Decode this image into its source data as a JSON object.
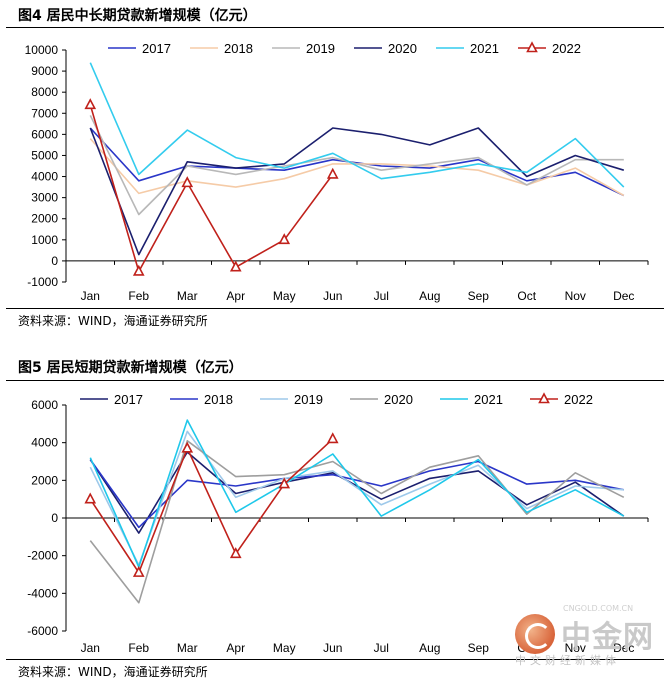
{
  "panels": [
    {
      "title": "图4  居民中长期贷款新增规模（亿元）",
      "source": "资料来源：WIND，海通证券研究所"
    },
    {
      "title": "图5  居民短期贷款新增规模（亿元）",
      "source": "资料来源：WIND，海通证券研究所"
    }
  ],
  "watermark": {
    "name": "中金网",
    "domain": "CNGOLD.COM.CN",
    "tagline": "中文财经新媒体"
  },
  "chart_data": [
    {
      "type": "line",
      "categories": [
        "Jan",
        "Feb",
        "Mar",
        "Apr",
        "May",
        "Jun",
        "Jul",
        "Aug",
        "Sep",
        "Oct",
        "Nov",
        "Dec"
      ],
      "ylim": [
        -1000,
        10000
      ],
      "yticks": [
        -1000,
        0,
        1000,
        2000,
        3000,
        4000,
        5000,
        6000,
        7000,
        8000,
        9000,
        10000
      ],
      "legend_position": "top",
      "grid": false,
      "series": [
        {
          "name": "2017",
          "color": "#2a36c8",
          "marker": null,
          "values": [
            6300,
            3800,
            4500,
            4400,
            4300,
            4800,
            4500,
            4400,
            4800,
            3800,
            4200,
            3100
          ]
        },
        {
          "name": "2018",
          "color": "#f5cba7",
          "marker": null,
          "values": [
            5800,
            3200,
            3800,
            3500,
            3900,
            4600,
            4600,
            4500,
            4300,
            3600,
            4400,
            3100
          ]
        },
        {
          "name": "2019",
          "color": "#b8b8b8",
          "marker": null,
          "values": [
            6900,
            2200,
            4500,
            4100,
            4500,
            4900,
            4300,
            4600,
            4900,
            3600,
            4800,
            4800
          ]
        },
        {
          "name": "2020",
          "color": "#1b1f6e",
          "marker": null,
          "values": [
            6300,
            300,
            4700,
            4400,
            4600,
            6300,
            6000,
            5500,
            6300,
            4000,
            5000,
            4300
          ]
        },
        {
          "name": "2021",
          "color": "#33ccee",
          "marker": null,
          "values": [
            9400,
            4100,
            6200,
            4900,
            4400,
            5100,
            3900,
            4200,
            4600,
            4200,
            5800,
            3500
          ]
        },
        {
          "name": "2022",
          "color": "#c0211b",
          "marker": "triangle",
          "values": [
            7400,
            -500,
            3700,
            -300,
            1000,
            4100,
            null,
            null,
            null,
            null,
            null,
            null
          ]
        }
      ]
    },
    {
      "type": "line",
      "categories": [
        "Jan",
        "Feb",
        "Mar",
        "Apr",
        "May",
        "Jun",
        "Jul",
        "Aug",
        "Sep",
        "Oct",
        "Nov",
        "Dec"
      ],
      "ylim": [
        -6000,
        6000
      ],
      "yticks": [
        -6000,
        -4000,
        -2000,
        0,
        2000,
        4000,
        6000
      ],
      "legend_position": "top",
      "grid": false,
      "series": [
        {
          "name": "2017",
          "color": "#1b1f6e",
          "marker": null,
          "values": [
            3100,
            -800,
            3500,
            1300,
            1900,
            2400,
            1000,
            2100,
            2500,
            700,
            1900,
            100
          ]
        },
        {
          "name": "2018",
          "color": "#2a36c8",
          "marker": null,
          "values": [
            3100,
            -500,
            2000,
            1700,
            2100,
            2300,
            1700,
            2500,
            3000,
            1800,
            2000,
            1500
          ]
        },
        {
          "name": "2019",
          "color": "#9ec9ea",
          "marker": null,
          "values": [
            2700,
            -2500,
            4600,
            1100,
            2100,
            2500,
            700,
            1800,
            2800,
            500,
            1700,
            1500
          ]
        },
        {
          "name": "2020",
          "color": "#9e9e9e",
          "marker": null,
          "values": [
            -1200,
            -4500,
            4100,
            2200,
            2300,
            3000,
            1300,
            2700,
            3300,
            200,
            2400,
            1100
          ]
        },
        {
          "name": "2021",
          "color": "#1fc8ea",
          "marker": null,
          "values": [
            3200,
            -2600,
            5200,
            300,
            1800,
            3400,
            100,
            1500,
            3100,
            300,
            1500,
            100
          ]
        },
        {
          "name": "2022",
          "color": "#c0211b",
          "marker": "triangle",
          "values": [
            1000,
            -2900,
            3700,
            -1900,
            1800,
            4200,
            null,
            null,
            null,
            null,
            null,
            null
          ]
        }
      ]
    }
  ]
}
